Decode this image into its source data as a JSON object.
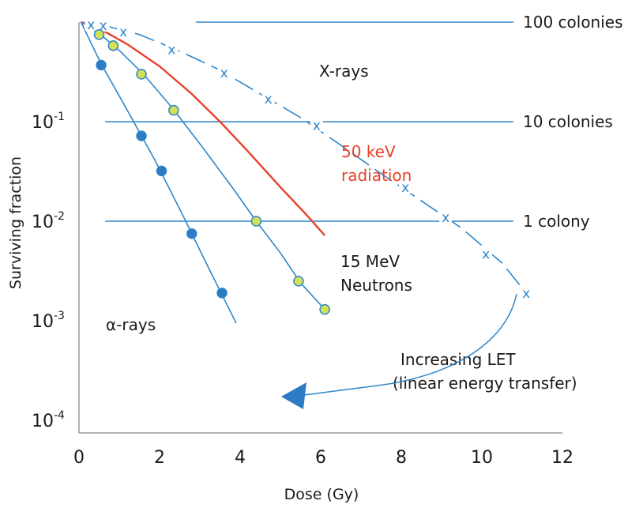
{
  "chart_data": {
    "type": "line",
    "xlabel": "Dose (Gy)",
    "ylabel": "Surviving fraction",
    "xlim": [
      0,
      12
    ],
    "ylim": [
      0.0001,
      1
    ],
    "yscale": "log",
    "grid": false,
    "x_ticks": [
      {
        "value": 0,
        "label": "0"
      },
      {
        "value": 2,
        "label": "2"
      },
      {
        "value": 4,
        "label": "4"
      },
      {
        "value": 6,
        "label": "6"
      },
      {
        "value": 8,
        "label": "8"
      },
      {
        "value": 10,
        "label": "10"
      },
      {
        "value": 12,
        "label": "12"
      }
    ],
    "y_ticks": [
      {
        "value": 0.1,
        "base": "10",
        "exp": "-1"
      },
      {
        "value": 0.01,
        "base": "10",
        "exp": "-2"
      },
      {
        "value": 0.001,
        "base": "10",
        "exp": "-3"
      },
      {
        "value": 0.0001,
        "base": "10",
        "exp": "-4"
      }
    ],
    "reference_lines": [
      {
        "y": 1.0,
        "x_start": 2.9,
        "label": "100 colonies"
      },
      {
        "y": 0.1,
        "x_start": 0.65,
        "label": "10 colonies"
      },
      {
        "y": 0.01,
        "x_start": 0.65,
        "label": "1 colony"
      }
    ],
    "series": [
      {
        "name": "X-rays",
        "color": "#2e86c8",
        "marker": "x",
        "line": "dashed",
        "x": [
          0.3,
          0.6,
          1.1,
          2.3,
          3.6,
          4.7,
          5.9,
          8.1,
          9.1,
          10.1,
          11.1
        ],
        "y": [
          0.95,
          0.93,
          0.8,
          0.53,
          0.31,
          0.17,
          0.092,
          0.022,
          0.011,
          0.0047,
          0.0019
        ],
        "curve_x": [
          0.05,
          0.6,
          1.5,
          2.5,
          3.5,
          4.5,
          5.5,
          6.5,
          7.5,
          8.5,
          9.5,
          10.5,
          11.1
        ],
        "curve_y": [
          1.0,
          0.93,
          0.75,
          0.51,
          0.33,
          0.19,
          0.11,
          0.058,
          0.03,
          0.016,
          0.0085,
          0.0038,
          0.0019
        ]
      },
      {
        "name": "50 keV radiation",
        "color": "#e8412a",
        "marker": "none",
        "line": "solid",
        "curve_x": [
          0.05,
          0.6,
          1.2,
          2.0,
          2.8,
          3.5,
          4.2,
          5.0,
          5.7,
          6.1
        ],
        "curve_y": [
          1.0,
          0.82,
          0.6,
          0.36,
          0.19,
          0.1,
          0.05,
          0.022,
          0.011,
          0.0072
        ]
      },
      {
        "name": "15 MeV Neutrons",
        "color": "#2e86c8",
        "marker": "circle",
        "marker_fill": "#d4e157",
        "line": "solid",
        "x": [
          0.5,
          0.85,
          1.55,
          2.35,
          4.4,
          5.45,
          6.1
        ],
        "y": [
          0.75,
          0.58,
          0.3,
          0.13,
          0.01,
          0.0025,
          0.0013
        ],
        "curve_x": [
          0.05,
          0.5,
          1.0,
          1.6,
          2.3,
          3.0,
          3.8,
          4.4,
          5.0,
          5.5,
          6.1
        ],
        "curve_y": [
          1.0,
          0.77,
          0.52,
          0.3,
          0.14,
          0.06,
          0.022,
          0.01,
          0.0048,
          0.0024,
          0.0013
        ]
      },
      {
        "name": "α-rays",
        "color": "#2e86c8",
        "marker": "circle",
        "marker_fill": "#2c7bc4",
        "line": "solid",
        "x": [
          0.55,
          1.55,
          2.05,
          2.8,
          3.55
        ],
        "y": [
          0.37,
          0.072,
          0.032,
          0.0075,
          0.0019
        ],
        "curve_x": [
          0.05,
          0.55,
          1.2,
          1.9,
          2.6,
          3.2,
          3.9
        ],
        "curve_y": [
          1.0,
          0.38,
          0.13,
          0.04,
          0.011,
          0.0035,
          0.00095
        ]
      }
    ],
    "annotations": {
      "xrays": "X-rays",
      "kev_line1": "50 keV",
      "kev_line2": "radiation",
      "neutrons_line1": "15 MeV",
      "neutrons_line2": "Neutrons",
      "alpha": "α-rays",
      "let_line1": "Increasing LET",
      "let_line2": "(linear energy transfer)"
    }
  }
}
